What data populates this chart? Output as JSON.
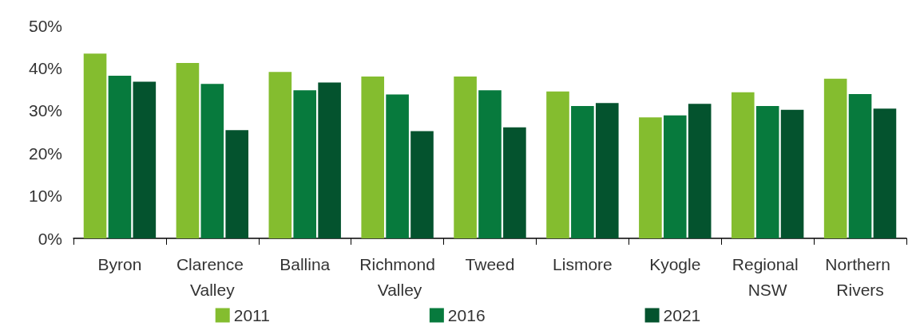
{
  "chart_data": {
    "type": "bar",
    "categories": [
      "Byron",
      "Clarence Valley",
      "Ballina",
      "Richmond Valley",
      "Tweed",
      "Lismore",
      "Kyogle",
      "Regional NSW",
      "Northern Rivers"
    ],
    "series": [
      {
        "name": "2011",
        "color": "#84bd2f",
        "values": [
          43.4,
          41.2,
          39.1,
          38.0,
          38.0,
          34.5,
          28.4,
          34.3,
          37.5
        ]
      },
      {
        "name": "2016",
        "color": "#077a3d",
        "values": [
          38.2,
          36.3,
          34.8,
          33.8,
          34.8,
          31.1,
          28.9,
          31.1,
          33.9
        ]
      },
      {
        "name": "2021",
        "color": "#04532e",
        "values": [
          36.8,
          25.4,
          36.6,
          25.2,
          26.1,
          31.8,
          31.6,
          30.2,
          30.5
        ]
      }
    ],
    "ylim": [
      0,
      50
    ],
    "yticks": [
      {
        "value": 0,
        "label": "0%"
      },
      {
        "value": 10,
        "label": "10%"
      },
      {
        "value": 20,
        "label": "20%"
      },
      {
        "value": 30,
        "label": "30%"
      },
      {
        "value": 40,
        "label": "40%"
      },
      {
        "value": 50,
        "label": "50%"
      }
    ],
    "grid": false,
    "legend": "bottom"
  }
}
